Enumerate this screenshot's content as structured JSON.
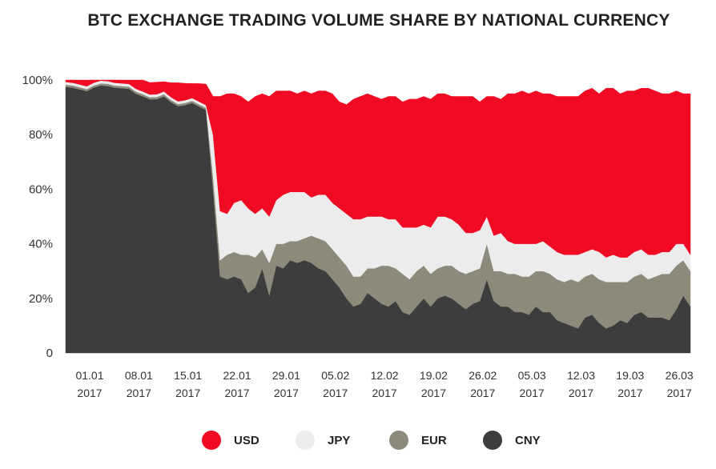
{
  "chart_data": {
    "type": "area",
    "stacked": true,
    "title": "BTC EXCHANGE TRADING VOLUME SHARE BY NATIONAL CURRENCY",
    "xlabel": "",
    "ylabel": "",
    "ylim": [
      0,
      100
    ],
    "y_ticks": [
      "0",
      "20%",
      "40%",
      "60%",
      "80%",
      "100%"
    ],
    "x_tick_labels": [
      [
        "01.01",
        "2017"
      ],
      [
        "08.01",
        "2017"
      ],
      [
        "15.01",
        "2017"
      ],
      [
        "22.01",
        "2017"
      ],
      [
        "29.01",
        "2017"
      ],
      [
        "05.02",
        "2017"
      ],
      [
        "12.02",
        "2017"
      ],
      [
        "19.02",
        "2017"
      ],
      [
        "26.02",
        "2017"
      ],
      [
        "05.03",
        "2017"
      ],
      [
        "12.03",
        "2017"
      ],
      [
        "19.03",
        "2017"
      ],
      [
        "26.03",
        "2017"
      ]
    ],
    "x": [
      "2017-01-01",
      "2017-01-02",
      "2017-01-03",
      "2017-01-04",
      "2017-01-05",
      "2017-01-06",
      "2017-01-07",
      "2017-01-08",
      "2017-01-09",
      "2017-01-10",
      "2017-01-11",
      "2017-01-12",
      "2017-01-13",
      "2017-01-14",
      "2017-01-15",
      "2017-01-16",
      "2017-01-17",
      "2017-01-18",
      "2017-01-19",
      "2017-01-20",
      "2017-01-21",
      "2017-01-22",
      "2017-01-23",
      "2017-01-24",
      "2017-01-25",
      "2017-01-26",
      "2017-01-27",
      "2017-01-28",
      "2017-01-29",
      "2017-01-30",
      "2017-01-31",
      "2017-02-01",
      "2017-02-02",
      "2017-02-03",
      "2017-02-04",
      "2017-02-05",
      "2017-02-06",
      "2017-02-07",
      "2017-02-08",
      "2017-02-09",
      "2017-02-10",
      "2017-02-11",
      "2017-02-12",
      "2017-02-13",
      "2017-02-14",
      "2017-02-15",
      "2017-02-16",
      "2017-02-17",
      "2017-02-18",
      "2017-02-19",
      "2017-02-20",
      "2017-02-21",
      "2017-02-22",
      "2017-02-23",
      "2017-02-24",
      "2017-02-25",
      "2017-02-26",
      "2017-02-27",
      "2017-02-28",
      "2017-03-01",
      "2017-03-02",
      "2017-03-03",
      "2017-03-04",
      "2017-03-05",
      "2017-03-06",
      "2017-03-07",
      "2017-03-08",
      "2017-03-09",
      "2017-03-10",
      "2017-03-11",
      "2017-03-12",
      "2017-03-13",
      "2017-03-14",
      "2017-03-15",
      "2017-03-16",
      "2017-03-17",
      "2017-03-18",
      "2017-03-19",
      "2017-03-20",
      "2017-03-21",
      "2017-03-22",
      "2017-03-23",
      "2017-03-24",
      "2017-03-25",
      "2017-03-26",
      "2017-03-27",
      "2017-03-28",
      "2017-03-29",
      "2017-03-30",
      "2017-03-31"
    ],
    "series": [
      {
        "name": "CNY",
        "color": "#3d3d3d",
        "values": [
          97.5,
          97.2,
          96.6,
          95.9,
          97.2,
          98.0,
          97.8,
          97.2,
          97.0,
          96.8,
          95.0,
          94.0,
          92.9,
          93.0,
          94.0,
          91.9,
          90.4,
          90.8,
          91.6,
          90.3,
          89.0,
          60.0,
          28.0,
          27.0,
          28.0,
          27.0,
          22.0,
          24.0,
          31.0,
          21.0,
          32.0,
          31.0,
          34.0,
          33.0,
          34.0,
          33.0,
          31.0,
          30.0,
          27.0,
          24.0,
          20.0,
          17.0,
          18.0,
          22.0,
          20.0,
          18.0,
          17.0,
          19.0,
          15.0,
          14.0,
          17.0,
          20.0,
          17.0,
          20.0,
          21.0,
          20.0,
          18.0,
          16.0,
          18.0,
          19.0,
          27.0,
          19.0,
          17.0,
          17.0,
          15.0,
          15.0,
          14.0,
          17.0,
          15.0,
          15.0,
          12.0,
          11.0,
          10.0,
          9.0,
          13.0,
          14.0,
          11.0,
          9.0,
          10.0,
          12.0,
          11.0,
          14.0,
          15.0,
          13.0,
          13.0,
          13.0,
          12.0,
          16.0,
          21.0,
          17.0
        ]
      },
      {
        "name": "EUR",
        "color": "#8c8a7a",
        "values": [
          0.8,
          0.8,
          0.8,
          0.8,
          0.8,
          0.8,
          0.8,
          0.8,
          0.8,
          0.8,
          0.8,
          0.8,
          0.8,
          0.8,
          0.8,
          0.8,
          0.8,
          0.8,
          0.8,
          0.8,
          0.8,
          5.0,
          6.0,
          9.0,
          9.0,
          9.0,
          14.0,
          11.0,
          7.0,
          12.0,
          8.0,
          9.0,
          7.0,
          8.0,
          8.0,
          10.0,
          11.0,
          11.0,
          11.0,
          11.0,
          12.0,
          11.0,
          10.0,
          9.0,
          11.0,
          14.0,
          15.0,
          12.0,
          14.0,
          13.0,
          13.0,
          12.0,
          12.0,
          11.0,
          11.0,
          12.0,
          12.0,
          13.0,
          12.0,
          12.0,
          13.0,
          11.0,
          13.0,
          12.0,
          14.0,
          13.0,
          14.0,
          13.0,
          15.0,
          14.0,
          15.0,
          15.0,
          17.0,
          17.0,
          15.0,
          15.0,
          16.0,
          17.0,
          16.0,
          14.0,
          15.0,
          14.0,
          14.0,
          14.0,
          15.0,
          16.0,
          17.0,
          16.0,
          13.0,
          13.0
        ]
      },
      {
        "name": "JPY",
        "color": "#ececec",
        "values": [
          1.0,
          1.0,
          1.0,
          1.0,
          1.0,
          1.0,
          1.0,
          1.0,
          1.0,
          1.0,
          1.0,
          1.0,
          1.0,
          1.0,
          1.0,
          1.0,
          1.0,
          1.0,
          1.0,
          1.0,
          1.0,
          15.0,
          18.0,
          15.0,
          18.0,
          20.0,
          17.0,
          16.0,
          15.0,
          17.0,
          16.0,
          18.0,
          18.0,
          18.0,
          17.0,
          14.0,
          16.0,
          17.0,
          17.0,
          18.0,
          19.0,
          21.0,
          21.0,
          19.0,
          19.0,
          18.0,
          17.0,
          18.0,
          17.0,
          19.0,
          16.0,
          15.0,
          17.0,
          19.0,
          18.0,
          17.0,
          17.0,
          15.0,
          14.0,
          14.0,
          10.0,
          13.0,
          14.0,
          12.0,
          11.0,
          12.0,
          12.0,
          10.0,
          11.0,
          10.0,
          10.0,
          10.0,
          9.0,
          10.0,
          9.0,
          9.0,
          10.0,
          9.0,
          10.0,
          9.0,
          9.0,
          9.0,
          9.0,
          9.0,
          8.0,
          8.0,
          8.0,
          8.0,
          6.0,
          6.0
        ]
      },
      {
        "name": "USD",
        "color": "#f00a23",
        "values": [
          0.7,
          1.0,
          1.6,
          2.3,
          1.0,
          0.2,
          0.4,
          1.0,
          1.2,
          1.4,
          3.2,
          4.2,
          4.4,
          4.4,
          3.6,
          5.3,
          6.8,
          6.2,
          5.3,
          6.6,
          7.7,
          14.0,
          42.0,
          44.0,
          40.0,
          38.0,
          39.0,
          43.0,
          42.0,
          44.0,
          40.0,
          38.0,
          37.0,
          36.0,
          37.0,
          38.0,
          38.0,
          38.0,
          40.0,
          39.0,
          40.0,
          44.0,
          45.0,
          45.0,
          44.0,
          43.0,
          45.0,
          45.0,
          46.0,
          47.0,
          47.0,
          47.0,
          47.0,
          45.0,
          45.0,
          45.0,
          47.0,
          50.0,
          50.0,
          47.0,
          44.0,
          51.0,
          49.0,
          54.0,
          55.0,
          56.0,
          55.0,
          56.0,
          54.0,
          56.0,
          57.0,
          58.0,
          58.0,
          58.0,
          59.0,
          59.0,
          58.0,
          62.0,
          61.0,
          60.0,
          61.0,
          59.0,
          59.0,
          61.0,
          60.0,
          58.0,
          58.0,
          56.0,
          55.0,
          59.0
        ]
      }
    ],
    "legend": {
      "position": "bottom",
      "entries": [
        {
          "name": "USD",
          "color": "#f00a23"
        },
        {
          "name": "JPY",
          "color": "#ececec"
        },
        {
          "name": "EUR",
          "color": "#8c8a7a"
        },
        {
          "name": "CNY",
          "color": "#3d3d3d"
        }
      ]
    },
    "grid": false
  }
}
